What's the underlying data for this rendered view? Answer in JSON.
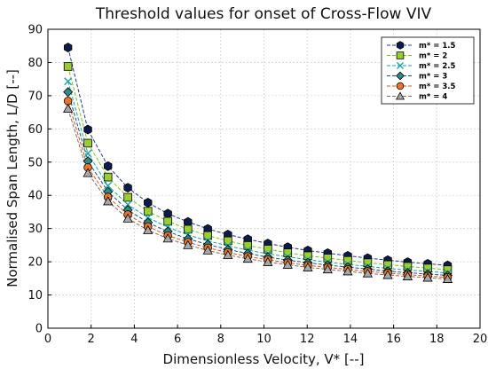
{
  "chart_data": {
    "type": "line",
    "title": "Threshold values for onset of Cross-Flow VIV",
    "xlabel": "Dimensionless Velocity, V* [--]",
    "ylabel": "Normalised Span Length, L/D [--]",
    "xlim": [
      0,
      20
    ],
    "ylim": [
      0,
      90
    ],
    "xticks": [
      0,
      2,
      4,
      6,
      8,
      10,
      12,
      14,
      16,
      18,
      20
    ],
    "yticks": [
      0,
      10,
      20,
      30,
      40,
      50,
      60,
      70,
      80,
      90
    ],
    "grid": true,
    "legend_position": "top-right",
    "x": [
      0.93,
      1.85,
      2.78,
      3.7,
      4.63,
      5.55,
      6.48,
      7.4,
      8.33,
      9.25,
      10.18,
      11.1,
      12.03,
      12.95,
      13.88,
      14.8,
      15.73,
      16.65,
      17.58,
      18.5
    ],
    "series": [
      {
        "name": "m* = 1.5",
        "color": "#1f3a8a",
        "fill": "#0d1b4a",
        "marker": "hexagon",
        "values": [
          84.5,
          59.8,
          48.8,
          42.3,
          37.8,
          34.5,
          32.0,
          29.9,
          28.2,
          26.8,
          25.5,
          24.4,
          23.4,
          22.6,
          21.8,
          21.1,
          20.5,
          19.9,
          19.4,
          18.9
        ]
      },
      {
        "name": "m* = 2",
        "color": "#7fbf1f",
        "fill": "#9acd32",
        "marker": "square",
        "values": [
          78.8,
          55.7,
          45.5,
          39.4,
          35.2,
          32.2,
          29.8,
          27.9,
          26.3,
          24.9,
          23.8,
          22.7,
          21.8,
          21.1,
          20.4,
          19.7,
          19.1,
          18.6,
          18.1,
          17.6
        ]
      },
      {
        "name": "m* = 2.5",
        "color": "#1aa3a3",
        "fill": "#1aa3a3",
        "marker": "x",
        "values": [
          74.3,
          52.6,
          42.9,
          37.2,
          33.3,
          30.4,
          28.1,
          26.3,
          24.8,
          23.5,
          22.4,
          21.5,
          20.6,
          19.9,
          19.2,
          18.6,
          18.0,
          17.5,
          17.1,
          16.6
        ]
      },
      {
        "name": "m* = 3",
        "color": "#1b4f8a",
        "fill": "#2e8b8b",
        "marker": "diamond",
        "values": [
          71.1,
          50.3,
          41.1,
          35.6,
          31.8,
          29.1,
          26.9,
          25.2,
          23.7,
          22.5,
          21.4,
          20.5,
          19.7,
          19.0,
          18.4,
          17.8,
          17.2,
          16.7,
          16.3,
          15.9
        ]
      },
      {
        "name": "m* = 3.5",
        "color": "#d9541a",
        "fill": "#e8752a",
        "marker": "circle",
        "values": [
          68.4,
          48.4,
          39.5,
          34.2,
          30.6,
          27.9,
          25.9,
          24.2,
          22.8,
          21.6,
          20.6,
          19.7,
          18.9,
          18.3,
          17.7,
          17.1,
          16.6,
          16.1,
          15.7,
          15.3
        ]
      },
      {
        "name": "m* = 4",
        "color": "#8b6b5a",
        "fill": "#a8a8a8",
        "marker": "triangle",
        "values": [
          66.1,
          46.7,
          38.2,
          33.0,
          29.5,
          27.0,
          25.0,
          23.4,
          22.0,
          20.9,
          19.9,
          19.1,
          18.3,
          17.7,
          17.1,
          16.5,
          16.0,
          15.6,
          15.2,
          14.8
        ]
      }
    ]
  }
}
